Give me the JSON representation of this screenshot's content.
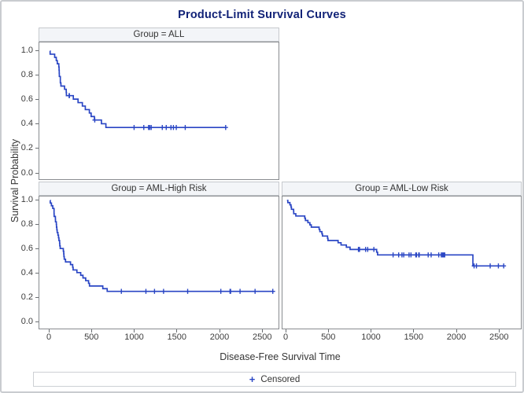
{
  "figure": {
    "title": "Product-Limit Survival Curves",
    "x_axis_label": "Disease-Free Survival Time",
    "y_axis_label": "Survival Probability",
    "legend": {
      "marker": "+",
      "label": "Censored"
    },
    "colors": {
      "curve": "#2945c4",
      "title": "#112277",
      "axis_text": "#3d3d3d",
      "panel_border": "#888b8f",
      "header_background": "#f3f5f8"
    }
  },
  "chart_data": {
    "type": "line",
    "subtype": "kaplan_meier_step_survival",
    "grid": false,
    "legend_position": "bottom",
    "xlim": [
      0,
      2700
    ],
    "ylim": [
      0.0,
      1.0
    ],
    "x_ticks": [
      0,
      500,
      1000,
      1500,
      2000,
      2500
    ],
    "y_ticks": [
      1.0,
      0.8,
      0.6,
      0.4,
      0.2,
      0.0
    ],
    "panels": [
      {
        "title": "Group = ALL",
        "end_time": 2081,
        "steps": [
          [
            0,
            1.0
          ],
          [
            1,
            0.9737
          ],
          [
            55,
            0.9474
          ],
          [
            74,
            0.9211
          ],
          [
            86,
            0.8947
          ],
          [
            104,
            0.8684
          ],
          [
            107,
            0.8421
          ],
          [
            109,
            0.8158
          ],
          [
            110,
            0.7895
          ],
          [
            122,
            0.7368
          ],
          [
            129,
            0.7105
          ],
          [
            172,
            0.6842
          ],
          [
            192,
            0.6579
          ],
          [
            194,
            0.6316
          ],
          [
            276,
            0.6029
          ],
          [
            332,
            0.5742
          ],
          [
            383,
            0.5455
          ],
          [
            418,
            0.5167
          ],
          [
            466,
            0.488
          ],
          [
            487,
            0.4593
          ],
          [
            526,
            0.4306
          ],
          [
            609,
            0.3999
          ],
          [
            662,
            0.3691
          ]
        ],
        "censored": [
          [
            226,
            0.6316
          ],
          [
            230,
            0.6316
          ],
          [
            530,
            0.4306
          ],
          [
            996,
            0.3691
          ],
          [
            1111,
            0.3691
          ],
          [
            1167,
            0.3691
          ],
          [
            1182,
            0.3691
          ],
          [
            1199,
            0.3691
          ],
          [
            1330,
            0.3691
          ],
          [
            1377,
            0.3691
          ],
          [
            1433,
            0.3691
          ],
          [
            1462,
            0.3691
          ],
          [
            1496,
            0.3691
          ],
          [
            1602,
            0.3691
          ],
          [
            2081,
            0.3691
          ]
        ]
      },
      {
        "title": "Group = AML-High Risk",
        "end_time": 2640,
        "steps": [
          [
            0,
            1.0
          ],
          [
            2,
            0.9778
          ],
          [
            16,
            0.9556
          ],
          [
            32,
            0.9333
          ],
          [
            47,
            0.8889
          ],
          [
            48,
            0.8667
          ],
          [
            63,
            0.8444
          ],
          [
            64,
            0.8222
          ],
          [
            74,
            0.8
          ],
          [
            76,
            0.7778
          ],
          [
            80,
            0.7556
          ],
          [
            84,
            0.7333
          ],
          [
            93,
            0.7111
          ],
          [
            100,
            0.6889
          ],
          [
            105,
            0.6667
          ],
          [
            113,
            0.6444
          ],
          [
            115,
            0.6222
          ],
          [
            120,
            0.6
          ],
          [
            157,
            0.5778
          ],
          [
            162,
            0.5556
          ],
          [
            164,
            0.5333
          ],
          [
            168,
            0.5111
          ],
          [
            183,
            0.4889
          ],
          [
            242,
            0.4667
          ],
          [
            268,
            0.4444
          ],
          [
            273,
            0.4222
          ],
          [
            318,
            0.4
          ],
          [
            363,
            0.3778
          ],
          [
            390,
            0.3556
          ],
          [
            422,
            0.3333
          ],
          [
            456,
            0.3111
          ],
          [
            467,
            0.2889
          ],
          [
            625,
            0.2667
          ],
          [
            677,
            0.2444
          ]
        ],
        "censored": [
          [
            845,
            0.2444
          ],
          [
            1136,
            0.2444
          ],
          [
            1238,
            0.2444
          ],
          [
            1345,
            0.2444
          ],
          [
            1631,
            0.2444
          ],
          [
            2024,
            0.2444
          ],
          [
            2133,
            0.2444
          ],
          [
            2140,
            0.2444
          ],
          [
            2252,
            0.2444
          ],
          [
            2430,
            0.2444
          ],
          [
            2640,
            0.2444
          ]
        ]
      },
      {
        "title": "Group = AML-Low Risk",
        "end_time": 2569,
        "steps": [
          [
            0,
            1.0
          ],
          [
            10,
            0.9815
          ],
          [
            35,
            0.963
          ],
          [
            48,
            0.9444
          ],
          [
            53,
            0.9259
          ],
          [
            79,
            0.9074
          ],
          [
            80,
            0.8889
          ],
          [
            105,
            0.8704
          ],
          [
            211,
            0.8519
          ],
          [
            219,
            0.8333
          ],
          [
            248,
            0.8148
          ],
          [
            272,
            0.7963
          ],
          [
            288,
            0.7778
          ],
          [
            381,
            0.7593
          ],
          [
            390,
            0.7407
          ],
          [
            414,
            0.7222
          ],
          [
            421,
            0.7037
          ],
          [
            481,
            0.6852
          ],
          [
            486,
            0.6667
          ],
          [
            606,
            0.6481
          ],
          [
            641,
            0.6296
          ],
          [
            704,
            0.6111
          ],
          [
            748,
            0.5926
          ],
          [
            1063,
            0.5698
          ],
          [
            1074,
            0.547
          ],
          [
            2204,
            0.4559
          ]
        ],
        "censored": [
          [
            847,
            0.5926
          ],
          [
            848,
            0.5926
          ],
          [
            860,
            0.5926
          ],
          [
            932,
            0.5926
          ],
          [
            957,
            0.5926
          ],
          [
            1030,
            0.5926
          ],
          [
            1258,
            0.547
          ],
          [
            1324,
            0.547
          ],
          [
            1363,
            0.547
          ],
          [
            1384,
            0.547
          ],
          [
            1447,
            0.547
          ],
          [
            1470,
            0.547
          ],
          [
            1527,
            0.547
          ],
          [
            1535,
            0.547
          ],
          [
            1562,
            0.547
          ],
          [
            1568,
            0.547
          ],
          [
            1674,
            0.547
          ],
          [
            1709,
            0.547
          ],
          [
            1799,
            0.547
          ],
          [
            1829,
            0.547
          ],
          [
            1843,
            0.547
          ],
          [
            1850,
            0.547
          ],
          [
            1857,
            0.547
          ],
          [
            1870,
            0.547
          ],
          [
            2218,
            0.4559
          ],
          [
            2246,
            0.4559
          ],
          [
            2409,
            0.4559
          ],
          [
            2506,
            0.4559
          ],
          [
            2569,
            0.4559
          ]
        ]
      }
    ]
  }
}
